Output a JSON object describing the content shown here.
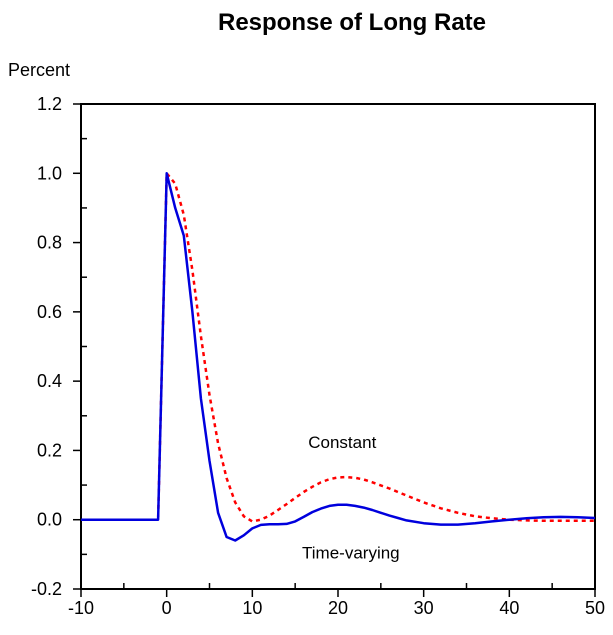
{
  "chart_data": {
    "type": "line",
    "title": "Response of Long Rate",
    "ylabel": "Percent",
    "xlabel": "",
    "xlim": [
      -10,
      50
    ],
    "ylim": [
      -0.2,
      1.2
    ],
    "x_ticks": [
      -10,
      0,
      10,
      20,
      30,
      40,
      50
    ],
    "x_tick_labels": [
      "-10",
      "0",
      "10",
      "20",
      "30",
      "40",
      "50"
    ],
    "y_ticks": [
      -0.2,
      0.0,
      0.2,
      0.4,
      0.6,
      0.8,
      1.0,
      1.2
    ],
    "y_tick_labels": [
      "-0.2",
      "0.0",
      "0.2",
      "0.4",
      "0.6",
      "0.8",
      "1.0",
      "1.2"
    ],
    "grid": false,
    "legend": "none",
    "annotations": [
      {
        "text": "Constant",
        "x": 20.5,
        "y": 0.225
      },
      {
        "text": "Time-varying",
        "x": 21.5,
        "y": -0.095
      }
    ],
    "series": [
      {
        "color": "#0000dd",
        "style": "solid",
        "x": [
          -10,
          -1,
          0,
          1,
          2,
          3,
          4,
          5,
          6,
          7,
          8,
          9,
          10,
          11,
          12,
          13,
          14,
          15,
          16,
          17,
          18,
          19,
          20,
          21,
          22,
          23,
          24,
          25,
          26,
          27,
          28,
          30,
          32,
          34,
          36,
          38,
          40,
          42,
          44,
          46,
          48,
          50
        ],
        "y": [
          0.0,
          0.0,
          1.0,
          0.9,
          0.82,
          0.6,
          0.35,
          0.17,
          0.02,
          -0.05,
          -0.06,
          -0.045,
          -0.025,
          -0.015,
          -0.013,
          -0.013,
          -0.012,
          -0.005,
          0.008,
          0.022,
          0.032,
          0.04,
          0.043,
          0.043,
          0.04,
          0.035,
          0.028,
          0.02,
          0.012,
          0.005,
          -0.002,
          -0.01,
          -0.014,
          -0.014,
          -0.01,
          -0.005,
          0.0,
          0.004,
          0.007,
          0.008,
          0.007,
          0.005
        ]
      },
      {
        "color": "#ff0000",
        "style": "dotted",
        "x": [
          -10,
          -1,
          0,
          1,
          2,
          3,
          4,
          5,
          6,
          7,
          8,
          9,
          10,
          11,
          12,
          13,
          14,
          15,
          16,
          17,
          18,
          19,
          20,
          21,
          22,
          23,
          24,
          25,
          26,
          28,
          30,
          32,
          34,
          36,
          38,
          40,
          42,
          44,
          46,
          48,
          50
        ],
        "y": [
          0.0,
          0.0,
          1.0,
          0.97,
          0.88,
          0.72,
          0.53,
          0.36,
          0.22,
          0.12,
          0.05,
          0.01,
          -0.005,
          0.0,
          0.012,
          0.028,
          0.045,
          0.063,
          0.08,
          0.095,
          0.108,
          0.117,
          0.122,
          0.123,
          0.121,
          0.116,
          0.108,
          0.099,
          0.09,
          0.07,
          0.05,
          0.033,
          0.02,
          0.01,
          0.004,
          0.0,
          -0.002,
          -0.003,
          -0.003,
          -0.003,
          -0.003
        ]
      }
    ]
  }
}
